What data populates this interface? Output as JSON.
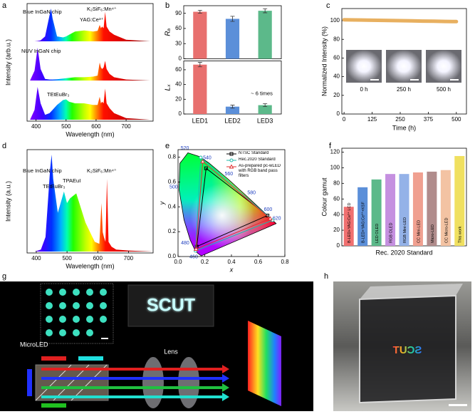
{
  "chart_data": [
    {
      "type": "spectra",
      "panel": "a",
      "x_label": "Wavelength (nm)",
      "y_label": "Intensity (arb.u.)",
      "x": [
        380,
        395,
        405,
        415,
        430,
        445,
        450,
        455,
        470,
        490,
        500,
        510,
        530,
        560,
        590,
        605,
        612,
        616,
        620,
        625,
        630,
        635,
        645,
        660,
        700,
        780
      ],
      "series": [
        {
          "values": [
            0,
            0,
            0.01,
            0.03,
            0.15,
            0.8,
            1.0,
            0.7,
            0.15,
            0.12,
            0.15,
            0.2,
            0.3,
            0.33,
            0.3,
            0.32,
            0.5,
            0.4,
            0.45,
            0.4,
            0.9,
            0.45,
            0.3,
            0.2,
            0.05,
            0
          ]
        },
        {
          "values": [
            0,
            0.3,
            1.0,
            0.35,
            0.05,
            0.03,
            0.03,
            0.03,
            0.04,
            0.06,
            0.07,
            0.08,
            0.1,
            0.1,
            0.12,
            0.15,
            0.55,
            0.4,
            0.35,
            0.4,
            0.6,
            0.35,
            0.2,
            0.1,
            0.03,
            0
          ]
        },
        {
          "values": [
            0,
            0.3,
            1.0,
            0.5,
            0.15,
            0.2,
            0.25,
            0.3,
            0.45,
            0.6,
            0.62,
            0.55,
            0.5,
            0.5,
            0.45,
            0.45,
            0.7,
            0.5,
            0.55,
            0.5,
            0.95,
            0.5,
            0.35,
            0.2,
            0.05,
            0
          ]
        }
      ],
      "xlim": [
        370,
        790
      ],
      "xticks": [
        400,
        500,
        600,
        700
      ],
      "ylim": [
        0,
        1
      ],
      "annotations": [
        "Blue InGaN chip",
        "YAG:Ce³⁺",
        "K₂SiF₆:Mn⁴⁺",
        "NUV InGaN chip",
        "TEtEuBr₃"
      ]
    },
    {
      "type": "bar_panels",
      "panel": "b",
      "categories": [
        "LED1",
        "LED2",
        "LED3"
      ],
      "colors": [
        "#e8706e",
        "#5b8fd9",
        "#5cb98a"
      ],
      "panels": [
        {
          "y_label": "Rₐ",
          "values": [
            93,
            79,
            95
          ],
          "errors": [
            3,
            5,
            4
          ],
          "ylim": [
            0,
            105
          ],
          "yticks": [
            0,
            30,
            60,
            90
          ]
        },
        {
          "y_label": "Lₓ",
          "values": [
            67,
            10,
            12
          ],
          "errors": [
            3,
            2,
            2
          ],
          "ylim": [
            0,
            72
          ],
          "yticks": [
            0,
            20,
            40,
            60
          ],
          "annotation": "~ 6 times"
        }
      ]
    },
    {
      "type": "line",
      "panel": "c",
      "x_label": "Time (h)",
      "y_label": "Normalized Intensity (%)",
      "color": "#e8b060",
      "x": [
        0,
        50,
        100,
        150,
        200,
        250,
        300,
        350,
        400,
        450,
        500
      ],
      "values": [
        101,
        100.8,
        100.6,
        100.4,
        100.2,
        100,
        99.8,
        99.6,
        99.4,
        99.2,
        99
      ],
      "xlim": [
        -10,
        545
      ],
      "xticks": [
        0,
        125,
        250,
        375,
        500
      ],
      "ylim": [
        0,
        113
      ],
      "yticks": [
        0,
        20,
        40,
        60,
        80,
        100
      ],
      "inset_labels": [
        "0 h",
        "250 h",
        "500 h"
      ]
    },
    {
      "type": "spectra",
      "panel": "d",
      "x_label": "Wavelength (nm)",
      "y_label": "Intensity (a.u.)",
      "x": [
        380,
        395,
        405,
        415,
        430,
        445,
        450,
        455,
        470,
        490,
        500,
        510,
        530,
        560,
        590,
        605,
        612,
        616,
        620,
        625,
        630,
        635,
        645,
        660,
        700,
        780
      ],
      "series": [
        {
          "values": [
            0,
            0,
            0.01,
            0.02,
            0.15,
            0.85,
            1.0,
            0.75,
            0.4,
            0.62,
            0.5,
            0.55,
            0.6,
            0.3,
            0.1,
            0.08,
            0.5,
            0.2,
            0.15,
            0.1,
            0.75,
            0.1,
            0.05,
            0.02,
            0.01,
            0
          ]
        }
      ],
      "xlim": [
        370,
        780
      ],
      "xticks": [
        400,
        500,
        600,
        700
      ],
      "ylim": [
        0,
        1
      ],
      "annotations": [
        "Blue InGaN chip",
        "TEtEuBr₃",
        "TPAEuI",
        "K₂SiF₆:Mn⁴⁺"
      ]
    },
    {
      "type": "cie",
      "panel": "e",
      "x_label": "x",
      "y_label": "y",
      "locus": {
        "x": [
          0.174,
          0.144,
          0.124,
          0.091,
          0.045,
          0.008,
          0.014,
          0.074,
          0.155,
          0.23,
          0.373,
          0.513,
          0.627,
          0.692,
          0.735
        ],
        "y": [
          0.005,
          0.03,
          0.058,
          0.133,
          0.295,
          0.538,
          0.75,
          0.834,
          0.806,
          0.754,
          0.625,
          0.487,
          0.373,
          0.308,
          0.265
        ],
        "wavelengths": [
          null,
          460,
          null,
          480,
          null,
          500,
          null,
          520,
          null,
          540,
          560,
          580,
          600,
          620,
          null
        ]
      },
      "series": [
        {
          "name": "NTSC Standard",
          "color": "#000000",
          "marker": "square",
          "x": [
            0.67,
            0.21,
            0.14
          ],
          "y": [
            0.33,
            0.71,
            0.08
          ]
        },
        {
          "name": "Rec.2020 Standard",
          "color": "#20b8a8",
          "marker": "circle",
          "x": [
            0.708,
            0.17,
            0.131
          ],
          "y": [
            0.292,
            0.797,
            0.046
          ]
        },
        {
          "name": "As-prepared pc-wLED with RGB band pass filters",
          "color": "#e03030",
          "marker": "triangle",
          "x": [
            0.69,
            0.185,
            0.135
          ],
          "y": [
            0.305,
            0.765,
            0.06
          ]
        }
      ],
      "xlim": [
        0,
        0.8
      ],
      "ylim": [
        0,
        0.86
      ],
      "xticks": [
        {
          "value": 0,
          "label": "0.0"
        },
        0.2,
        0.4,
        0.6,
        0.8
      ],
      "yticks": [
        {
          "value": 0,
          "label": "0.0"
        },
        0.2,
        0.4,
        0.6,
        0.8
      ]
    },
    {
      "type": "bar",
      "panel": "f",
      "y_label": "Colour gamut",
      "x_label": "Rec. 2020 Standard",
      "categories": [
        "B-LED+YAG:Ce³⁺ LCD",
        "B-LED+YAG:Ce³⁺+KSF",
        "LED OLED",
        "RGB OLED",
        "RGB Mini-LED",
        "CC Mini-LED",
        "Micro-LED",
        "CC Micro-LED",
        "This work"
      ],
      "values": [
        50,
        75,
        85,
        92,
        92,
        94,
        95,
        97,
        115
      ],
      "colors": [
        "#f07070",
        "#5b8fd9",
        "#5cb98a",
        "#c590e0",
        "#94b2e8",
        "#f0a090",
        "#b08c8c",
        "#f3c3a3",
        "#f0e060"
      ],
      "ylim": [
        0,
        125
      ],
      "yticks": [
        0,
        20,
        40,
        60,
        80,
        100,
        120
      ]
    }
  ],
  "panel_g": {
    "panel": "g",
    "screen_text": "SCUT",
    "source_label": "MicroLED",
    "lens_label": "Lens"
  },
  "panel_h": {
    "panel": "h",
    "cube_text": "SCUT"
  }
}
